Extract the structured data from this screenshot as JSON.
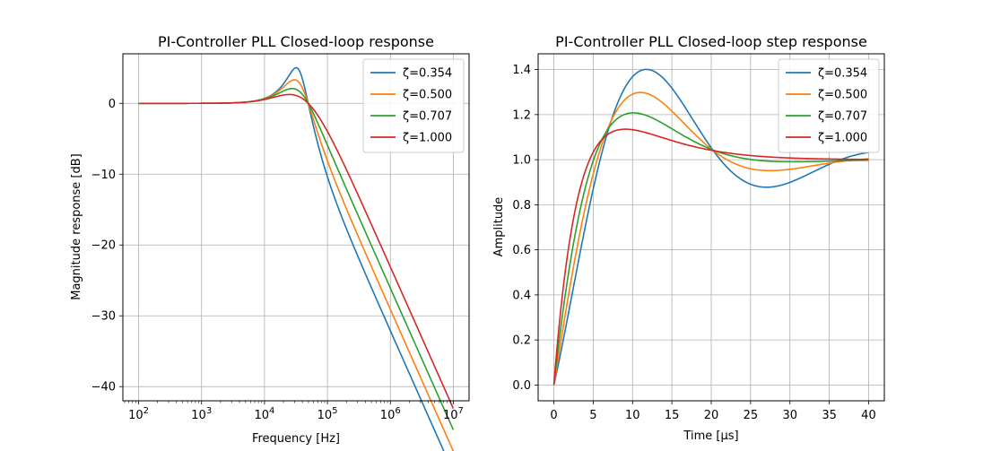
{
  "chart_data": [
    {
      "type": "line",
      "title": "PI-Controller PLL Closed-loop response",
      "xlabel": "Frequency [Hz]",
      "ylabel": "Magnitude response [dB]",
      "xscale": "log",
      "xlim": [
        100,
        10000000
      ],
      "ylim": [
        -42,
        7
      ],
      "xticks": [
        100,
        1000,
        10000,
        100000,
        1000000,
        10000000
      ],
      "xtick_base": "10",
      "xtick_exponents": [
        "2",
        "3",
        "4",
        "5",
        "6",
        "7"
      ],
      "yticks": [
        0,
        -10,
        -20,
        -30,
        -40
      ],
      "ytick_labels": [
        "0",
        "−10",
        "−20",
        "−30",
        "−40"
      ],
      "grid": true,
      "legend": "top-right",
      "series": [
        {
          "name": "ζ=0.354",
          "color": "#1f77b4",
          "zeta": 0.3536
        },
        {
          "name": "ζ=0.500",
          "color": "#ff7f0e",
          "zeta": 0.5
        },
        {
          "name": "ζ=0.707",
          "color": "#2ca02c",
          "zeta": 0.7071
        },
        {
          "name": "ζ=1.000",
          "color": "#d62728",
          "zeta": 1.0
        }
      ]
    },
    {
      "type": "line",
      "title": "PI-Controller PLL Closed-loop step response",
      "xlabel": "Time [μs]",
      "ylabel": "Amplitude",
      "xlim": [
        0,
        40
      ],
      "ylim": [
        -0.07,
        1.47
      ],
      "xticks": [
        0,
        5,
        10,
        15,
        20,
        25,
        30,
        35,
        40
      ],
      "xtick_labels": [
        "0",
        "5",
        "10",
        "15",
        "20",
        "25",
        "30",
        "35",
        "40"
      ],
      "yticks": [
        0.0,
        0.2,
        0.4,
        0.6,
        0.8,
        1.0,
        1.2,
        1.4
      ],
      "ytick_labels": [
        "0.0",
        "0.2",
        "0.4",
        "0.6",
        "0.8",
        "1.0",
        "1.2",
        "1.4"
      ],
      "grid": true,
      "legend": "top-right",
      "series": [
        {
          "name": "ζ=0.354",
          "color": "#1f77b4",
          "zeta": 0.3536
        },
        {
          "name": "ζ=0.500",
          "color": "#ff7f0e",
          "zeta": 0.5
        },
        {
          "name": "ζ=0.707",
          "color": "#2ca02c",
          "zeta": 0.7071
        },
        {
          "name": "ζ=1.000",
          "color": "#d62728",
          "zeta": 1.0
        }
      ]
    }
  ]
}
